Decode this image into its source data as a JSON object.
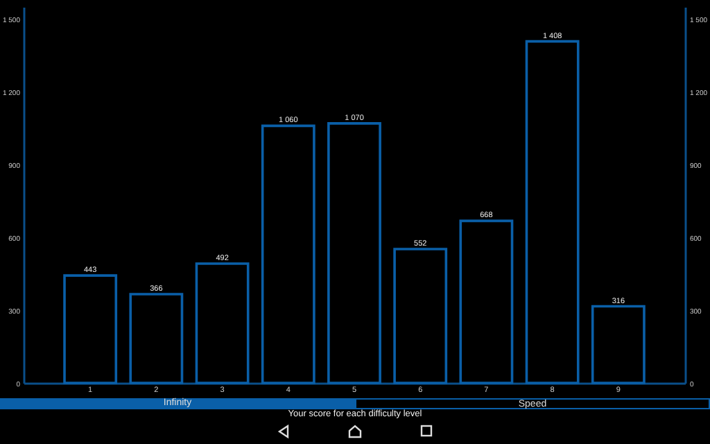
{
  "chart_data": {
    "type": "bar",
    "xlabel": "Your score for each difficulty level",
    "categories": [
      "1",
      "2",
      "3",
      "4",
      "5",
      "6",
      "7",
      "8",
      "9"
    ],
    "values": [
      443,
      366,
      492,
      1060,
      1070,
      552,
      668,
      1408,
      316
    ],
    "value_labels": [
      "443",
      "366",
      "492",
      "1 060",
      "1 070",
      "552",
      "668",
      "1 408",
      "316"
    ],
    "color": "#0a5fa8",
    "ylim": [
      0,
      1550
    ],
    "yticks": [
      0,
      300,
      600,
      900,
      {
        "value": 1200,
        "label": "1 200"
      },
      {
        "value": 1500,
        "label": "1 500"
      }
    ],
    "y2lim": [
      0,
      1550
    ],
    "y2ticks": [
      0,
      300,
      600,
      900,
      {
        "value": 1200,
        "label": "1 200"
      },
      {
        "value": 1500,
        "label": "1 500"
      }
    ],
    "annotations": [
      "Infinity",
      "Speed"
    ]
  }
}
